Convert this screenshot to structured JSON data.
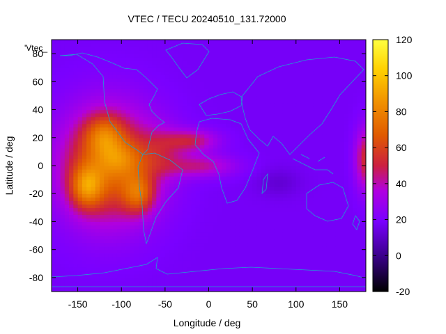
{
  "chart_data": {
    "type": "heatmap",
    "title": "VTEC / TECU 20240510_131.72000",
    "xlabel": "Longitude / deg",
    "ylabel": "Latitude / deg",
    "xlim": [
      -180,
      180
    ],
    "ylim": [
      -90,
      90
    ],
    "x_ticks": [
      -150,
      -100,
      -50,
      0,
      50,
      100,
      150
    ],
    "y_ticks": [
      -80,
      -60,
      -40,
      -20,
      0,
      20,
      40,
      60,
      80
    ],
    "colorbar": {
      "range": [
        -20,
        120
      ],
      "ticks": [
        -20,
        0,
        20,
        40,
        60,
        80,
        100,
        120
      ]
    },
    "legend_label": "'Vtec_",
    "background_tecu": 18,
    "colors": {
      "stops": [
        "#000000",
        "#3a008a",
        "#7a00ff",
        "#b000e0",
        "#cc2040",
        "#e05a00",
        "#f09000",
        "#ffd000",
        "#ffff40"
      ],
      "coastline": "#1f9fd0"
    },
    "enhancements": [
      {
        "lon": -115,
        "lat": 0,
        "sx": 55,
        "sy": 40,
        "tecu": 52
      },
      {
        "lon": -120,
        "lat": 22,
        "sx": 22,
        "sy": 14,
        "tecu": 28
      },
      {
        "lon": -140,
        "lat": -15,
        "sx": 18,
        "sy": 15,
        "tecu": 38
      },
      {
        "lon": -80,
        "lat": -20,
        "sx": 18,
        "sy": 14,
        "tecu": 32
      },
      {
        "lon": -100,
        "lat": 5,
        "sx": 25,
        "sy": 12,
        "tecu": 18
      },
      {
        "lon": -55,
        "lat": 10,
        "sx": 25,
        "sy": 18,
        "tecu": 15
      },
      {
        "lon": -20,
        "lat": 18,
        "sx": 30,
        "sy": 8,
        "tecu": 28
      },
      {
        "lon": -10,
        "lat": 0,
        "sx": 40,
        "sy": 8,
        "tecu": 24
      },
      {
        "lon": 180,
        "lat": 5,
        "sx": 12,
        "sy": 22,
        "tecu": 35
      },
      {
        "lon": 80,
        "lat": -12,
        "sx": 25,
        "sy": 10,
        "tecu": -6
      }
    ]
  }
}
